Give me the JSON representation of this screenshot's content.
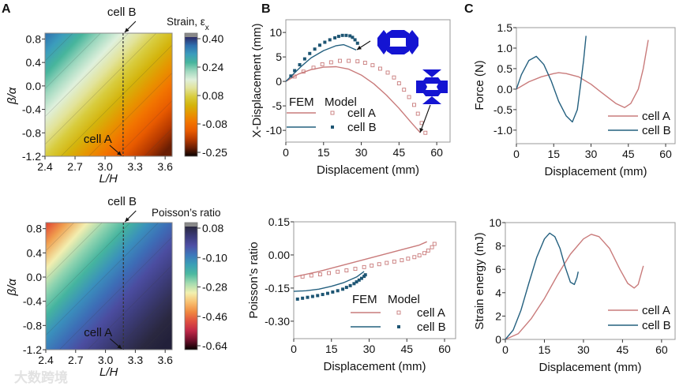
{
  "panels": {
    "a": "A",
    "b": "B",
    "c": "C"
  },
  "watermark": "大数跨境",
  "colors": {
    "cell_a": "#c97b7b",
    "cell_b": "#24607f",
    "fem_b_marker": "#1d5573",
    "inset_shape": "#1414d2"
  },
  "chart_data": [
    {
      "id": "A_strain",
      "panel": "A",
      "type": "heatmap",
      "xlabel": "L/H",
      "ylabel": "β/α",
      "xlim": [
        2.4,
        3.67
      ],
      "ylim": [
        -1.2,
        0.9
      ],
      "xticks": [
        2.4,
        2.7,
        3.0,
        3.3,
        3.6
      ],
      "xtick_labels": [
        "2.4",
        "2.7",
        "3.0",
        "3.3",
        "3.6"
      ],
      "yticks": [
        0.8,
        0.4,
        0.0,
        -0.4,
        -0.8,
        -1.2
      ],
      "ytick_labels": [
        "0.8",
        "0.4",
        "0.0",
        "-0.4",
        "-0.8",
        "-1.2"
      ],
      "colorbar": {
        "title": "Strain, ε",
        "title_sub": "x",
        "tick_labels": [
          "0.40",
          "0.24",
          "0.08",
          "-0.08",
          "-0.25"
        ],
        "range": [
          -0.25,
          0.4
        ],
        "colormap": [
          "#8a8a8a",
          "#2b2a66",
          "#2f6fae",
          "#3b9cbc",
          "#47b59c",
          "#9fd8bf",
          "#dff0dc",
          "#e2e39a",
          "#d8cc3e",
          "#d4b40c",
          "#e69400",
          "#f27400",
          "#e85a00",
          "#b83a00",
          "#6a1e04",
          "#0a0200"
        ]
      },
      "corner_values": {
        "top_left": 0.38,
        "bottom_right": -0.24
      },
      "marker_line_x": 3.18,
      "annotations": [
        {
          "text": "cell B",
          "at": "top"
        },
        {
          "text": "cell A",
          "at": "bottom"
        }
      ]
    },
    {
      "id": "A_poisson",
      "panel": "A",
      "type": "heatmap",
      "xlabel": "L/H",
      "ylabel": "β/α",
      "xlim": [
        2.4,
        3.67
      ],
      "ylim": [
        -1.2,
        0.9
      ],
      "xticks": [
        2.4,
        2.7,
        3.0,
        3.3,
        3.6
      ],
      "xtick_labels": [
        "2.4",
        "2.7",
        "3.0",
        "3.3",
        "3.6"
      ],
      "yticks": [
        0.8,
        0.4,
        0.0,
        -0.4,
        -0.8,
        -1.2
      ],
      "ytick_labels": [
        "0.8",
        "0.4",
        "0.0",
        "-0.4",
        "-0.8",
        "-1.2"
      ],
      "colorbar": {
        "title": "Poisson’s ratio",
        "tick_labels": [
          "0.08",
          "-0.10",
          "-0.28",
          "-0.46",
          "-0.64"
        ],
        "range": [
          -0.64,
          0.08
        ],
        "colormap": [
          "#8a8a8a",
          "#2a2840",
          "#3a3a78",
          "#4e4fa4",
          "#3d78bb",
          "#3a9fb6",
          "#4cb9a0",
          "#a5dcb0",
          "#f2f0b0",
          "#f8c070",
          "#f08a40",
          "#e05040",
          "#c02848",
          "#70102c",
          "#050000"
        ]
      },
      "corner_values": {
        "top_left": -0.52,
        "bottom_right": 0.05
      },
      "marker_line_x": 3.18,
      "annotations": [
        {
          "text": "cell B",
          "at": "top"
        },
        {
          "text": "cell A",
          "at": "bottom"
        }
      ]
    },
    {
      "id": "B_xdisp",
      "panel": "B",
      "type": "line",
      "xlabel": "Displacement (mm)",
      "ylabel": "X-Displacement (mm)",
      "xlim": [
        0,
        65.3
      ],
      "ylim": [
        -12.4,
        12.6
      ],
      "xticks": [
        0,
        15,
        30,
        45,
        60
      ],
      "xtick_labels": [
        "0",
        "15",
        "30",
        "45",
        "60"
      ],
      "yticks": [
        10,
        5,
        0,
        -5,
        -10
      ],
      "ytick_labels": [
        "10",
        "5",
        "0",
        "-5",
        "-10"
      ],
      "legend": {
        "header": [
          "FEM",
          "Model"
        ],
        "entries": [
          "cell A",
          "cell B"
        ],
        "placement": "bottom-left"
      },
      "series": [
        {
          "name": "cell A",
          "kind": "line",
          "color_key": "cell_a",
          "x": [
            0,
            5,
            10,
            15,
            20,
            25,
            30,
            35,
            40,
            45,
            50,
            53.5
          ],
          "y": [
            0,
            1.5,
            2.4,
            2.9,
            3.0,
            2.5,
            1.3,
            -0.5,
            -2.8,
            -5.5,
            -8.5,
            -10.5
          ]
        },
        {
          "name": "cell A",
          "kind": "open-square",
          "color_key": "cell_a",
          "x": [
            3.5,
            7,
            11,
            14.5,
            18,
            21.5,
            25,
            28.5,
            31.5,
            34.5,
            37.5,
            40.5,
            43,
            45,
            47,
            49,
            51,
            52.5,
            54,
            55.5
          ],
          "y": [
            1.0,
            2.0,
            2.8,
            3.5,
            3.9,
            4.2,
            4.2,
            4.1,
            3.8,
            3.3,
            2.6,
            1.8,
            0.8,
            -0.4,
            -1.7,
            -3.2,
            -4.8,
            -6.6,
            -8.5,
            -10.5
          ]
        },
        {
          "name": "cell B",
          "kind": "line",
          "color_key": "cell_b",
          "x": [
            0,
            3,
            6,
            10,
            15,
            20,
            23,
            25,
            28
          ],
          "y": [
            0,
            1.5,
            3.0,
            4.8,
            6.3,
            7.3,
            7.5,
            7.1,
            6.4
          ]
        },
        {
          "name": "cell B",
          "kind": "filled-square",
          "color_key": "fem_b_marker",
          "x": [
            2,
            3.5,
            5.5,
            7.5,
            9.5,
            11.5,
            13.5,
            15.5,
            17.5,
            19.5,
            21,
            22.5,
            24,
            25.5,
            26.5,
            27.5,
            28.5
          ],
          "y": [
            1.1,
            2.2,
            3.4,
            4.6,
            5.7,
            6.6,
            7.4,
            8.0,
            8.5,
            8.9,
            9.2,
            9.4,
            9.4,
            9.3,
            9.0,
            8.5,
            7.8
          ]
        }
      ]
    },
    {
      "id": "B_poisson",
      "panel": "B",
      "type": "line",
      "xlabel": "Displacement (mm)",
      "ylabel": "Poisson’s ratio",
      "xlim": [
        0,
        64.4
      ],
      "ylim": [
        -0.379,
        0.15
      ],
      "xticks": [
        0,
        15,
        30,
        45,
        60
      ],
      "xtick_labels": [
        "0",
        "15",
        "30",
        "45",
        "60"
      ],
      "yticks": [
        0.15,
        0.0,
        -0.15,
        -0.3
      ],
      "ytick_labels": [
        "0.15",
        "0.00",
        "-0.15",
        "-0.30"
      ],
      "legend": {
        "header": [
          "FEM",
          "Model"
        ],
        "entries": [
          "cell A",
          "cell B"
        ],
        "placement": "bottom-right"
      },
      "series": [
        {
          "name": "cell A",
          "kind": "line",
          "color_key": "cell_a",
          "x": [
            0,
            10,
            20,
            30,
            40,
            50,
            53
          ],
          "y": [
            -0.1,
            -0.075,
            -0.045,
            -0.015,
            0.015,
            0.045,
            0.06
          ]
        },
        {
          "name": "cell A",
          "kind": "open-square",
          "color_key": "cell_a",
          "x": [
            3.5,
            7,
            10.5,
            14,
            17.5,
            21,
            24.5,
            28,
            31,
            34,
            37,
            40,
            43,
            45.5,
            48,
            50,
            52,
            53.5,
            55,
            56
          ],
          "y": [
            -0.098,
            -0.093,
            -0.088,
            -0.082,
            -0.076,
            -0.07,
            -0.063,
            -0.055,
            -0.048,
            -0.042,
            -0.036,
            -0.03,
            -0.024,
            -0.017,
            -0.01,
            -0.002,
            0.008,
            0.02,
            0.035,
            0.05
          ]
        },
        {
          "name": "cell B",
          "kind": "line",
          "color_key": "cell_b",
          "x": [
            0,
            5,
            10,
            15,
            20,
            25,
            28
          ],
          "y": [
            -0.165,
            -0.162,
            -0.155,
            -0.142,
            -0.125,
            -0.1,
            -0.075
          ]
        },
        {
          "name": "cell B",
          "kind": "filled-square",
          "color_key": "fem_b_marker",
          "x": [
            1.5,
            3.5,
            5.5,
            7.5,
            9.5,
            11.5,
            13.5,
            15.5,
            17.5,
            19.5,
            21,
            22.5,
            24,
            25,
            26,
            27,
            28,
            28.5
          ],
          "y": [
            -0.2,
            -0.196,
            -0.192,
            -0.188,
            -0.184,
            -0.179,
            -0.174,
            -0.168,
            -0.162,
            -0.155,
            -0.147,
            -0.139,
            -0.13,
            -0.122,
            -0.114,
            -0.106,
            -0.097,
            -0.09
          ]
        }
      ]
    },
    {
      "id": "C_force",
      "panel": "C",
      "type": "line",
      "xlabel": "Displacement (mm)",
      "ylabel": "Force (N)",
      "xlim": [
        0,
        63.8
      ],
      "ylim": [
        -1.33,
        1.5
      ],
      "xticks": [
        0,
        15,
        30,
        45,
        60
      ],
      "xtick_labels": [
        "0",
        "15",
        "30",
        "45",
        "60"
      ],
      "yticks": [
        1.5,
        1.0,
        0.5,
        0.0,
        -0.5,
        -1.0
      ],
      "ytick_labels": [
        "1.5",
        "1.0",
        "0.5",
        "0.0",
        "-0.5",
        "-1.0"
      ],
      "legend": {
        "entries": [
          "cell A",
          "cell B"
        ],
        "placement": "bottom-right"
      },
      "series": [
        {
          "name": "cell A",
          "kind": "line",
          "color_key": "cell_a",
          "x": [
            0,
            5,
            10,
            15,
            17,
            20,
            25,
            30,
            35,
            40,
            43.5,
            46,
            49,
            51,
            53
          ],
          "y": [
            0,
            0.18,
            0.3,
            0.38,
            0.4,
            0.38,
            0.3,
            0.12,
            -0.12,
            -0.35,
            -0.45,
            -0.35,
            0.0,
            0.5,
            1.2
          ]
        },
        {
          "name": "cell B",
          "kind": "line",
          "color_key": "cell_b",
          "x": [
            0,
            2,
            5,
            8,
            11,
            14,
            17,
            20,
            22.5,
            24.5,
            26,
            27,
            28
          ],
          "y": [
            0,
            0.35,
            0.7,
            0.8,
            0.6,
            0.2,
            -0.3,
            -0.65,
            -0.8,
            -0.5,
            0.2,
            0.7,
            1.3
          ]
        }
      ]
    },
    {
      "id": "C_energy",
      "panel": "C",
      "type": "line",
      "xlabel": "Displacement (mm)",
      "ylabel": "Strain energy (mJ)",
      "xlim": [
        0,
        65.2
      ],
      "ylim": [
        0,
        10
      ],
      "xticks": [
        0,
        15,
        30,
        45,
        60
      ],
      "xtick_labels": [
        "0",
        "15",
        "30",
        "45",
        "60"
      ],
      "yticks": [
        10,
        8,
        6,
        4,
        2,
        0
      ],
      "ytick_labels": [
        "10",
        "8",
        "6",
        "4",
        "2",
        "0"
      ],
      "legend": {
        "entries": [
          "cell A",
          "cell B"
        ],
        "placement": "bottom-right"
      },
      "series": [
        {
          "name": "cell A",
          "kind": "line",
          "color_key": "cell_a",
          "x": [
            0,
            5,
            10,
            15,
            20,
            25,
            30,
            33,
            36,
            40,
            44,
            47,
            49.5,
            51,
            53
          ],
          "y": [
            0,
            0.5,
            1.8,
            3.5,
            5.5,
            7.3,
            8.6,
            9.0,
            8.8,
            7.8,
            6.0,
            4.8,
            4.4,
            4.7,
            6.3
          ]
        },
        {
          "name": "cell B",
          "kind": "line",
          "color_key": "cell_b",
          "x": [
            0,
            3,
            6,
            9,
            12,
            15,
            17,
            19,
            21,
            23,
            25,
            26.5,
            27.5,
            28
          ],
          "y": [
            0,
            0.8,
            2.5,
            4.8,
            7.0,
            8.6,
            9.1,
            8.8,
            7.8,
            6.2,
            4.9,
            4.7,
            5.3,
            5.8
          ]
        }
      ]
    }
  ]
}
